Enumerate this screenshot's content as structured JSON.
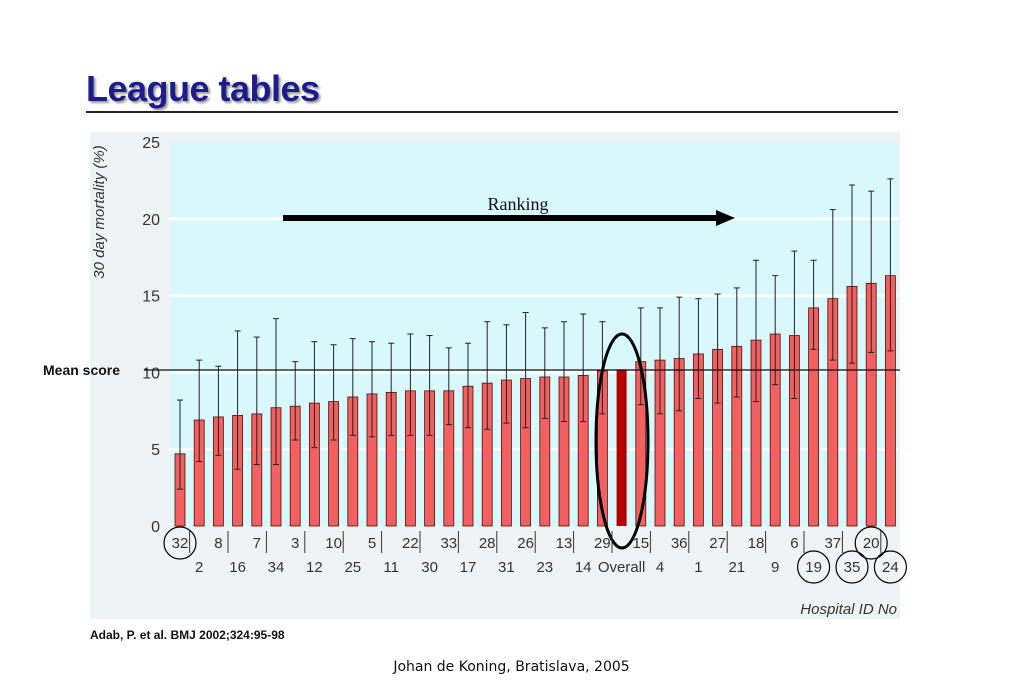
{
  "slide": {
    "title": "League tables",
    "citation": "Adab, P. et al. BMJ 2002;324:95-98",
    "footer": "Johan de Koning, Bratislava, 2005"
  },
  "annotations": {
    "ranking_label": "Ranking",
    "mean_label": "Mean score"
  },
  "chart_data": {
    "type": "bar",
    "ylabel": "30 day mortality (%)",
    "xlabel": "Hospital ID No",
    "ylim": [
      0,
      25
    ],
    "yticks": [
      0,
      5,
      10,
      15,
      20,
      25
    ],
    "grid": true,
    "mean_score": 10.2,
    "categories": [
      "32",
      "2",
      "8",
      "16",
      "7",
      "34",
      "3",
      "12",
      "10",
      "25",
      "5",
      "11",
      "22",
      "30",
      "33",
      "17",
      "28",
      "31",
      "26",
      "23",
      "13",
      "14",
      "29",
      "Overall",
      "15",
      "4",
      "36",
      "1",
      "27",
      "21",
      "18",
      "9",
      "6",
      "19",
      "37",
      "35",
      "20",
      "24"
    ],
    "values": [
      4.7,
      6.9,
      7.1,
      7.2,
      7.3,
      7.7,
      7.8,
      8.0,
      8.1,
      8.4,
      8.6,
      8.7,
      8.8,
      8.8,
      8.8,
      9.1,
      9.3,
      9.5,
      9.6,
      9.7,
      9.7,
      9.8,
      10.1,
      10.2,
      10.7,
      10.8,
      10.9,
      11.2,
      11.5,
      11.7,
      12.1,
      12.5,
      12.4,
      14.2,
      14.8,
      15.6,
      15.8,
      16.3
    ],
    "ci_upper": [
      8.2,
      10.8,
      10.4,
      12.7,
      12.3,
      13.5,
      10.7,
      12.0,
      11.8,
      12.2,
      12.0,
      11.9,
      12.5,
      12.4,
      11.6,
      11.9,
      13.3,
      13.1,
      13.9,
      12.9,
      13.3,
      13.8,
      13.3,
      10.7,
      14.2,
      14.2,
      14.9,
      14.8,
      15.1,
      15.5,
      17.3,
      16.3,
      17.9,
      17.3,
      20.6,
      22.2,
      21.8,
      22.6
    ],
    "ci_lower": [
      2.4,
      4.2,
      4.6,
      3.7,
      4.0,
      4.0,
      5.6,
      5.1,
      5.6,
      5.9,
      5.8,
      5.9,
      5.9,
      5.9,
      6.6,
      6.4,
      6.3,
      6.7,
      6.4,
      7.0,
      6.8,
      6.8,
      7.3,
      9.6,
      7.9,
      7.3,
      7.5,
      8.3,
      8.0,
      8.4,
      8.1,
      9.2,
      8.3,
      11.5,
      10.8,
      10.6,
      11.3,
      11.4
    ],
    "highlighted_category": "Overall",
    "circled_categories": [
      "32",
      "19",
      "35",
      "20",
      "24"
    ],
    "colors": {
      "bar": "#f26060",
      "bar_stroke": "#4a1010",
      "highlight_bar": "#b50000",
      "plot_background": "#d8f8fb",
      "grid": "#ffffff",
      "axis_text": "#333333",
      "title": "#1c1c8c"
    }
  }
}
